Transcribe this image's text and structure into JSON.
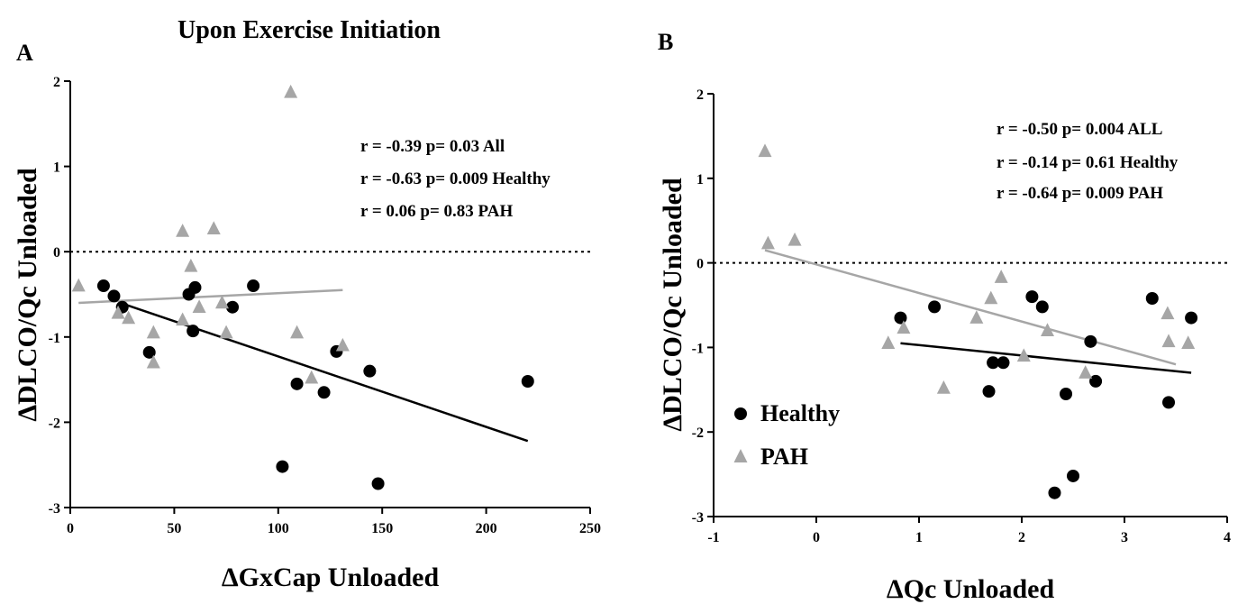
{
  "chart_data": [
    {
      "panel": "A",
      "type": "scatter",
      "title": "Upon Exercise Initiation",
      "xlabel": "ΔGxCap Unloaded",
      "ylabel": "ΔDLCO/Qc Unloaded",
      "xlim": [
        0,
        250
      ],
      "ylim": [
        -3,
        2
      ],
      "xticks": [
        0,
        50,
        100,
        150,
        200,
        250
      ],
      "yticks": [
        -3,
        -2,
        -1,
        0,
        1,
        2
      ],
      "reference_line_y": 0,
      "annotations": [
        "r = -0.39 p= 0.03 All",
        "r = -0.63 p= 0.009 Healthy",
        "r =  0.06 p= 0.83 PAH"
      ],
      "series": [
        {
          "name": "Healthy",
          "marker": "circle",
          "color": "#000000",
          "x": [
            16,
            21,
            25,
            38,
            57,
            59,
            60,
            78,
            88,
            102,
            109,
            122,
            128,
            144,
            148,
            220
          ],
          "y": [
            -0.4,
            -0.52,
            -0.65,
            -1.18,
            -0.5,
            -0.93,
            -0.42,
            -0.65,
            -0.4,
            -2.52,
            -1.55,
            -1.65,
            -1.17,
            -1.4,
            -2.72,
            -1.52
          ],
          "fit": {
            "x": [
              24,
              220
            ],
            "y": [
              -0.6,
              -2.22
            ]
          }
        },
        {
          "name": "PAH",
          "marker": "triangle",
          "color": "#a6a6a6",
          "x": [
            4,
            23,
            28,
            40,
            40,
            54,
            54,
            58,
            62,
            69,
            73,
            75,
            106,
            109,
            116,
            131
          ],
          "y": [
            -0.4,
            -0.72,
            -0.78,
            -0.95,
            -1.3,
            0.24,
            -0.8,
            -0.17,
            -0.65,
            0.27,
            -0.6,
            -0.95,
            1.87,
            -0.95,
            -1.48,
            -1.1
          ],
          "fit": {
            "x": [
              4,
              131
            ],
            "y": [
              -0.6,
              -0.45
            ]
          }
        }
      ]
    },
    {
      "panel": "B",
      "type": "scatter",
      "xlabel": "ΔQc Unloaded",
      "ylabel": "ΔDLCO/Qc Unloaded",
      "xlim": [
        -1,
        4
      ],
      "ylim": [
        -3,
        2
      ],
      "xticks": [
        -1,
        0,
        1,
        2,
        3,
        4
      ],
      "yticks": [
        -3,
        -2,
        -1,
        0,
        1,
        2
      ],
      "reference_line_y": 0,
      "legend": {
        "position": "bottom-left",
        "entries": [
          "Healthy",
          "PAH"
        ]
      },
      "annotations": [
        "r = -0.50 p= 0.004 ALL",
        "r = -0.14 p= 0.61 Healthy",
        "r = -0.64 p= 0.009 PAH"
      ],
      "series": [
        {
          "name": "Healthy",
          "marker": "circle",
          "color": "#000000",
          "x": [
            0.82,
            1.15,
            1.68,
            1.72,
            1.82,
            2.1,
            2.2,
            2.32,
            2.43,
            2.5,
            2.67,
            2.72,
            3.27,
            3.43,
            3.65
          ],
          "y": [
            -0.65,
            -0.52,
            -1.52,
            -1.18,
            -1.18,
            -0.4,
            -0.52,
            -2.72,
            -1.55,
            -2.52,
            -0.93,
            -1.4,
            -0.42,
            -1.65,
            -0.65
          ],
          "fit": {
            "x": [
              0.82,
              3.65
            ],
            "y": [
              -0.95,
              -1.3
            ]
          }
        },
        {
          "name": "PAH",
          "marker": "triangle",
          "color": "#a6a6a6",
          "x": [
            -0.5,
            -0.47,
            -0.21,
            0.7,
            0.85,
            1.24,
            1.56,
            1.7,
            1.8,
            2.02,
            2.25,
            2.62,
            3.42,
            3.43,
            3.62
          ],
          "y": [
            1.32,
            0.23,
            0.27,
            -0.95,
            -0.77,
            -1.48,
            -0.65,
            -0.42,
            -0.17,
            -1.1,
            -0.8,
            -1.3,
            -0.6,
            -0.93,
            -0.95
          ],
          "fit": {
            "x": [
              -0.5,
              3.5
            ],
            "y": [
              0.15,
              -1.2
            ]
          }
        }
      ]
    }
  ]
}
